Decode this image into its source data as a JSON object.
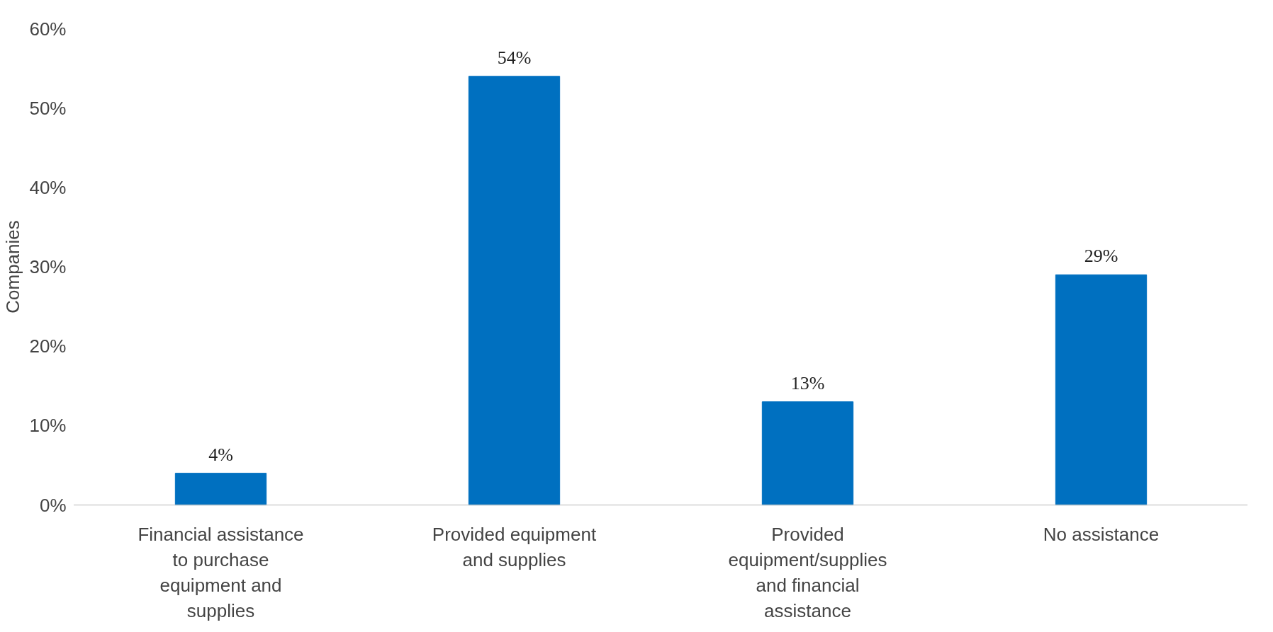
{
  "chart_data": {
    "type": "bar",
    "ylabel": "Companies",
    "categories": [
      "Financial assistance to purchase equipment and supplies",
      "Provided equipment and supplies",
      "Provided equipment/supplies and financial assistance",
      "No assistance"
    ],
    "values": [
      4,
      54,
      13,
      29
    ],
    "color": "#0070c0",
    "ylim": [
      0,
      60
    ],
    "yticks": [
      {
        "value": 0,
        "label": "0%"
      },
      {
        "value": 10,
        "label": "10%"
      },
      {
        "value": 20,
        "label": "20%"
      },
      {
        "value": 30,
        "label": "30%"
      },
      {
        "value": 40,
        "label": "40%"
      },
      {
        "value": 50,
        "label": "50%"
      },
      {
        "value": 60,
        "label": "60%"
      }
    ],
    "value_labels": [
      "4%",
      "54%",
      "13%",
      "29%"
    ],
    "grid": false
  }
}
